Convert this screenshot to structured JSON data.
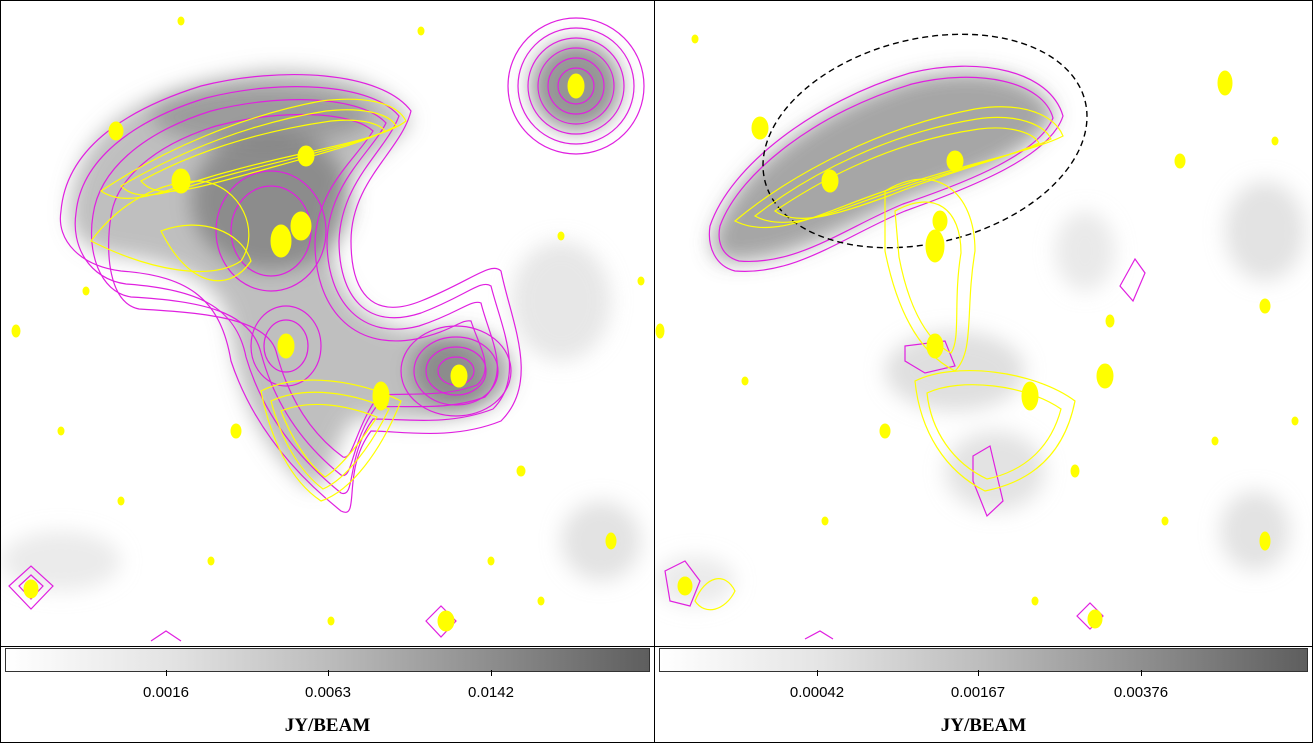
{
  "panels": [
    {
      "colorbar": {
        "ticks": [
          "0.0016",
          "0.0063",
          "0.0142"
        ],
        "unit": "JY/BEAM"
      }
    },
    {
      "colorbar": {
        "ticks": [
          "0.00042",
          "0.00167",
          "0.00376"
        ],
        "unit": "JY/BEAM"
      }
    }
  ],
  "colors": {
    "contour_primary": "#ffff00",
    "contour_secondary": "#e020e0",
    "ellipse": "#000000",
    "colormap": [
      "#ffffff",
      "#5e5e5e"
    ]
  }
}
